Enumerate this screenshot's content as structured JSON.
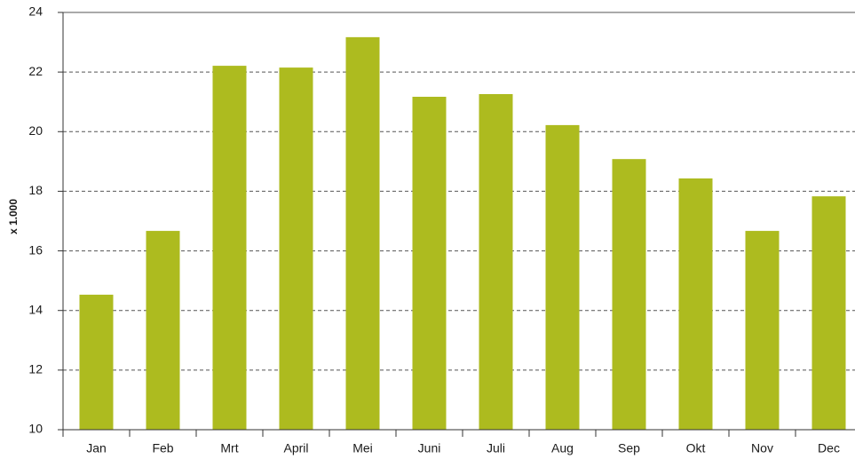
{
  "chart_data": {
    "type": "bar",
    "y_label": "x 1.000",
    "categories": [
      "Jan",
      "Feb",
      "Mrt",
      "April",
      "Mei",
      "Juni",
      "Juli",
      "Aug",
      "Sep",
      "Okt",
      "Nov",
      "Dec"
    ],
    "values": [
      14.53,
      16.67,
      22.21,
      22.15,
      23.17,
      21.17,
      21.26,
      20.22,
      19.08,
      18.43,
      16.67,
      17.83
    ],
    "color": "#adbb1f",
    "ylim": [
      10,
      24
    ],
    "yticks": [
      10,
      12,
      14,
      16,
      18,
      20,
      22,
      24
    ],
    "grid": true
  }
}
